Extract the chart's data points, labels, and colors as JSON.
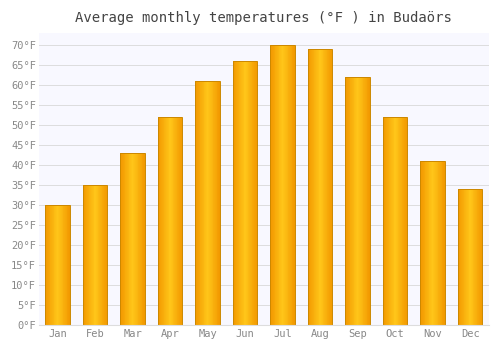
{
  "months": [
    "Jan",
    "Feb",
    "Mar",
    "Apr",
    "May",
    "Jun",
    "Jul",
    "Aug",
    "Sep",
    "Oct",
    "Nov",
    "Dec"
  ],
  "values": [
    30,
    35,
    43,
    52,
    61,
    66,
    70,
    69,
    62,
    52,
    41,
    34
  ],
  "bar_color_main": "#FFA500",
  "bar_color_light": "#FFD060",
  "bar_edge_color": "#CC8800",
  "background_color": "#FFFFFF",
  "plot_bg_color": "#F8F8FF",
  "grid_color": "#DDDDDD",
  "title": "Average monthly temperatures (°F ) in Budaörs",
  "title_fontsize": 10,
  "title_color": "#444444",
  "tick_color": "#888888",
  "ylim": [
    0,
    73
  ],
  "yticks": [
    0,
    5,
    10,
    15,
    20,
    25,
    30,
    35,
    40,
    45,
    50,
    55,
    60,
    65,
    70
  ],
  "ytick_labels": [
    "0°F",
    "5°F",
    "10°F",
    "15°F",
    "20°F",
    "25°F",
    "30°F",
    "35°F",
    "40°F",
    "45°F",
    "50°F",
    "55°F",
    "60°F",
    "65°F",
    "70°F"
  ],
  "font_family": "monospace",
  "bar_width": 0.65
}
